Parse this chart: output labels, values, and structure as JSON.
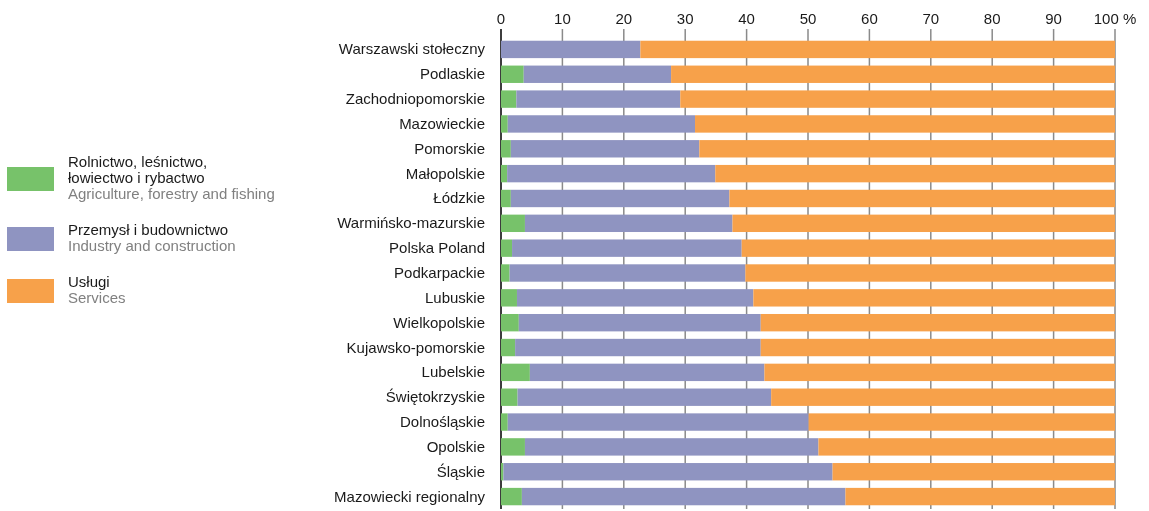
{
  "chart_data": {
    "type": "bar",
    "orientation": "horizontal",
    "stacked": true,
    "categories": [
      "Warszawski stołeczny",
      "Podlaskie",
      "Zachodniopomorskie",
      "Mazowieckie",
      "Pomorskie",
      "Małopolskie",
      "Łódzkie",
      "Warmińsko-mazurskie",
      "Polska Poland",
      "Podkarpackie",
      "Lubuskie",
      "Wielkopolskie",
      "Kujawsko-pomorskie",
      "Lubelskie",
      "Świętokrzyskie",
      "Dolnośląskie",
      "Opolskie",
      "Śląskie",
      "Mazowiecki regionalny"
    ],
    "series": [
      {
        "name": "Rolnictwo, leśnictwo,\nłowiectwo i rybactwo\nAgriculture, forestry and fishing",
        "color": "#77c26a",
        "values": [
          0,
          3.7,
          2.5,
          1.1,
          1.6,
          1.0,
          1.6,
          3.9,
          1.8,
          1.4,
          2.6,
          2.9,
          2.3,
          4.7,
          2.7,
          1.1,
          3.9,
          0.4,
          3.4
        ]
      },
      {
        "name": "Przemysł i budownictwo\nIndustry and construction",
        "color": "#8f94c1",
        "values": [
          22.7,
          24.0,
          26.7,
          30.5,
          30.7,
          33.9,
          35.6,
          33.8,
          37.4,
          38.4,
          38.5,
          39.4,
          40.0,
          38.2,
          41.3,
          49.0,
          47.8,
          53.6,
          52.7
        ]
      },
      {
        "name": "Usługi\nServices",
        "color": "#f7a14a",
        "values": [
          77.3,
          72.3,
          70.8,
          68.4,
          67.7,
          65.1,
          62.8,
          62.3,
          60.8,
          60.2,
          58.9,
          57.7,
          57.7,
          57.1,
          56.0,
          49.9,
          48.3,
          46.0,
          43.9
        ]
      }
    ],
    "xlim": [
      0,
      100
    ],
    "xticks": [
      0,
      10,
      20,
      30,
      40,
      50,
      60,
      70,
      80,
      90,
      {
        "value": 100,
        "label": "100 %"
      }
    ],
    "grid": "x",
    "legend": "left"
  }
}
